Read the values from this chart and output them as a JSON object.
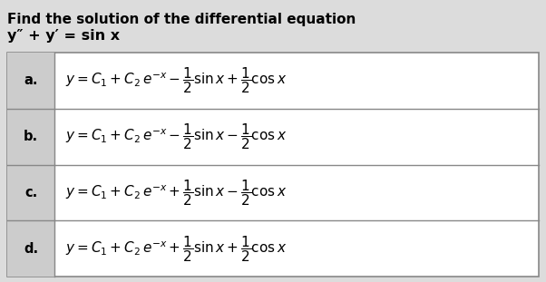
{
  "title_line1": "Find the solution of the differential equation",
  "title_line2": "y″ + y′ = sin x",
  "bg_color": "#dcdcdc",
  "table_bg": "#ffffff",
  "label_bg": "#cccccc",
  "border_color": "#888888",
  "rows": [
    {
      "label": "a.",
      "formula": "$y = C_1 + C_2\\,e^{-x} - \\dfrac{1}{2}\\mathrm{sin}\\,x + \\dfrac{1}{2}\\mathrm{cos}\\,x$"
    },
    {
      "label": "b.",
      "formula": "$y = C_1 + C_2\\,e^{-x} - \\dfrac{1}{2}\\mathrm{sin}\\,x - \\dfrac{1}{2}\\mathrm{cos}\\,x$"
    },
    {
      "label": "c.",
      "formula": "$y = C_1 + C_2\\,e^{-x} + \\dfrac{1}{2}\\mathrm{sin}\\,x - \\dfrac{1}{2}\\mathrm{cos}\\,x$"
    },
    {
      "label": "d.",
      "formula": "$y = C_1 + C_2\\,e^{-x} + \\dfrac{1}{2}\\mathrm{sin}\\,x + \\dfrac{1}{2}\\mathrm{cos}\\,x$"
    }
  ],
  "title_fontsize": 11.0,
  "eq_fontsize": 11.5,
  "label_fontsize": 10.5,
  "formula_fontsize": 11.0
}
